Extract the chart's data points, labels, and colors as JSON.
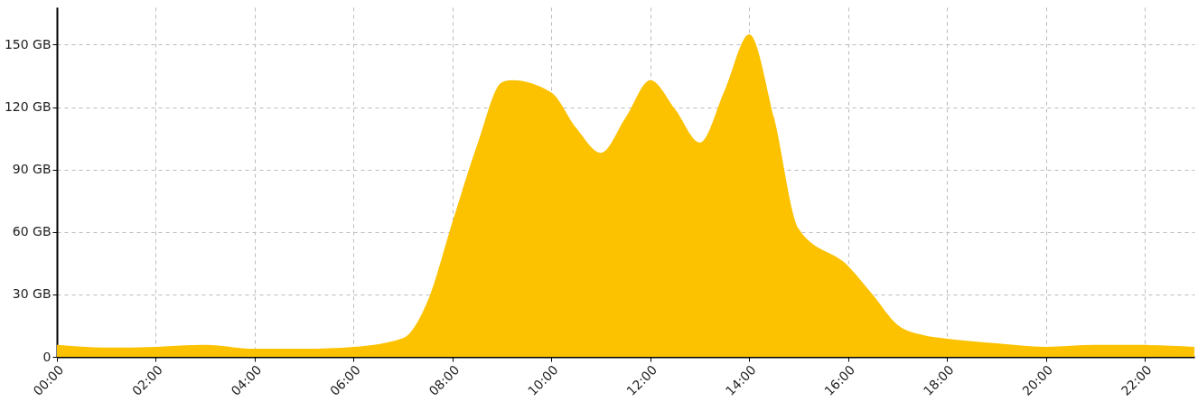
{
  "chart_data": {
    "type": "area",
    "x": [
      0,
      1,
      2,
      3,
      4,
      5,
      6,
      7,
      7.5,
      8,
      8.5,
      9,
      9.2,
      10,
      10.5,
      11,
      11.5,
      12,
      12.5,
      13,
      13.5,
      14,
      14.5,
      15,
      16,
      16.5,
      17,
      17.5,
      18,
      19,
      20,
      21,
      22,
      23
    ],
    "series": [
      {
        "color": "#fcc200",
        "values": [
          5.7,
          4.4,
          4.8,
          5.7,
          3.9,
          3.9,
          4.8,
          9,
          27,
          65,
          102,
          132,
          133,
          127,
          110,
          98,
          115,
          133,
          119,
          103,
          128,
          155,
          115,
          61.5,
          43.6,
          29.7,
          15.3,
          10.5,
          8.7,
          6.5,
          4.8,
          5.7,
          5.7,
          4.8
        ]
      }
    ],
    "xlim": [
      0,
      23
    ],
    "xticks": [
      {
        "value": 0,
        "label": "00:00"
      },
      {
        "value": 2,
        "label": "02:00"
      },
      {
        "value": 4,
        "label": "04:00"
      },
      {
        "value": 6,
        "label": "06:00"
      },
      {
        "value": 8,
        "label": "08:00"
      },
      {
        "value": 10,
        "label": "10:00"
      },
      {
        "value": 12,
        "label": "12:00"
      },
      {
        "value": 14,
        "label": "14:00"
      },
      {
        "value": 16,
        "label": "16:00"
      },
      {
        "value": 18,
        "label": "18:00"
      },
      {
        "value": 20,
        "label": "20:00"
      },
      {
        "value": 22,
        "label": "22:00"
      }
    ],
    "ylim": [
      0,
      168
    ],
    "yticks": [
      0,
      {
        "value": 30,
        "label": "30 GB"
      },
      {
        "value": 60,
        "label": "60 GB"
      },
      {
        "value": 90,
        "label": "90 GB"
      },
      {
        "value": 120,
        "label": "120 GB"
      },
      {
        "value": 150,
        "label": "150 GB"
      }
    ],
    "grid": true
  }
}
